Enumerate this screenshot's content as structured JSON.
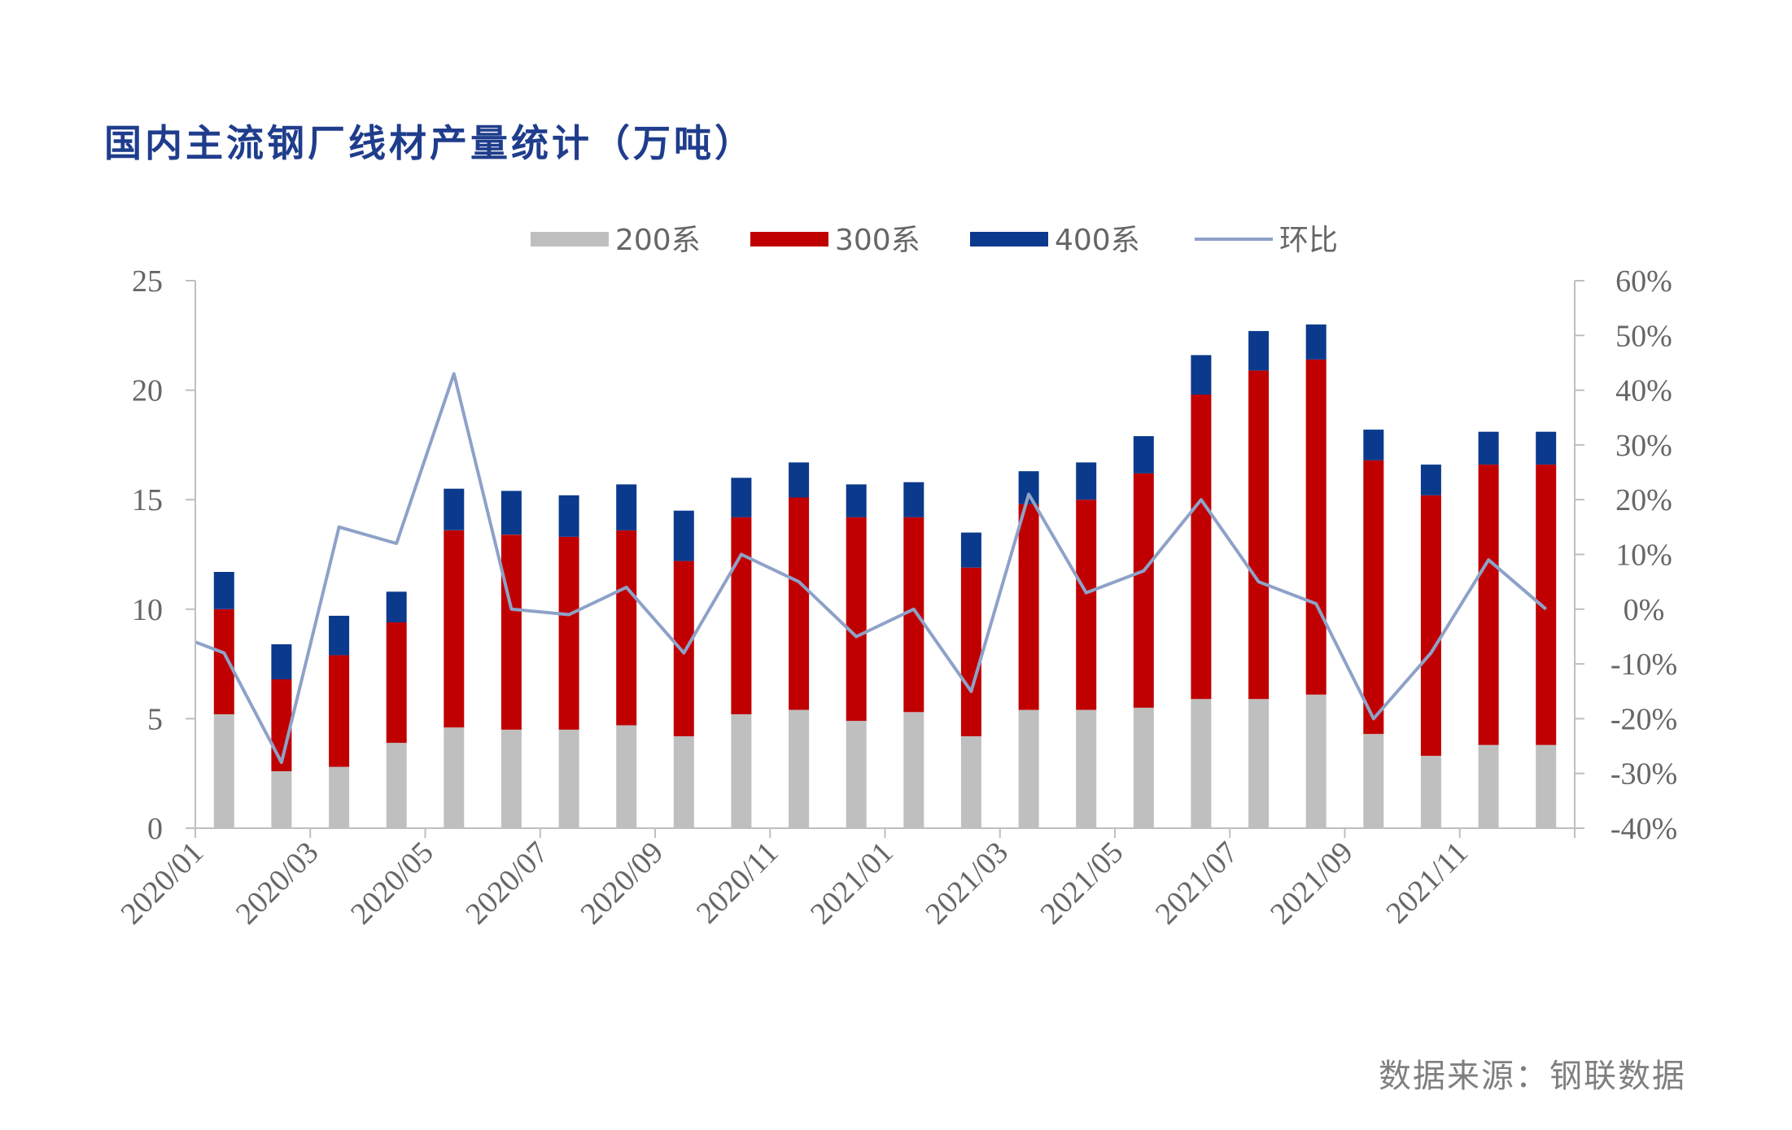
{
  "title": "国内主流钢厂线材产量统计（万吨）",
  "source": "数据来源：钢联数据",
  "chart_data": {
    "type": "bar",
    "stacked": true,
    "title": "国内主流钢厂线材产量统计（万吨）",
    "categories": [
      "2020/01",
      "2020/02",
      "2020/03",
      "2020/04",
      "2020/05",
      "2020/06",
      "2020/07",
      "2020/08",
      "2020/09",
      "2020/10",
      "2020/11",
      "2020/12",
      "2021/01",
      "2021/02",
      "2021/03",
      "2021/04",
      "2021/05",
      "2021/06",
      "2021/07",
      "2021/08",
      "2021/09",
      "2021/10",
      "2021/11",
      "2021/12"
    ],
    "tick_labels": [
      "2020/01",
      "2020/03",
      "2020/05",
      "2020/07",
      "2020/09",
      "2020/11",
      "2021/01",
      "2021/03",
      "2021/05",
      "2021/07",
      "2021/09",
      "2021/11"
    ],
    "series": [
      {
        "name": "200系",
        "kind": "bar",
        "axis": "left",
        "color": "#bfbfbf",
        "values": [
          5.2,
          2.6,
          2.8,
          3.9,
          4.6,
          4.5,
          4.5,
          4.7,
          4.2,
          5.2,
          5.4,
          4.9,
          5.3,
          4.2,
          5.4,
          5.4,
          5.5,
          5.9,
          5.9,
          6.1,
          4.3,
          3.3,
          3.8,
          3.8
        ]
      },
      {
        "name": "300系",
        "kind": "bar",
        "axis": "left",
        "color": "#c00000",
        "values": [
          4.8,
          4.2,
          5.1,
          5.5,
          9.0,
          8.9,
          8.8,
          8.9,
          8.0,
          9.0,
          9.7,
          9.3,
          8.9,
          7.7,
          9.4,
          9.6,
          10.7,
          13.9,
          15.0,
          15.3,
          12.5,
          11.9,
          12.8,
          12.8
        ]
      },
      {
        "name": "400系",
        "kind": "bar",
        "axis": "left",
        "color": "#0b3a8c",
        "values": [
          1.7,
          1.6,
          1.8,
          1.4,
          1.9,
          2.0,
          1.9,
          2.1,
          2.3,
          1.8,
          1.6,
          1.5,
          1.6,
          1.6,
          1.5,
          1.7,
          1.7,
          1.8,
          1.8,
          1.6,
          1.4,
          1.4,
          1.5,
          1.5
        ]
      },
      {
        "name": "环比",
        "kind": "line",
        "axis": "right",
        "color": "#8ea2c8",
        "values": [
          -8,
          -28,
          15,
          12,
          43,
          0,
          -1,
          4,
          -8,
          10,
          5,
          -5,
          0,
          -15,
          21,
          3,
          7,
          20,
          5,
          1,
          -20,
          -8,
          9,
          0
        ]
      }
    ],
    "line_start_value": -6,
    "left_axis": {
      "min": 0,
      "max": 25,
      "ticks": [
        0,
        5,
        10,
        15,
        20,
        25
      ]
    },
    "right_axis": {
      "min": -40,
      "max": 60,
      "ticks": [
        "-40%",
        "-30%",
        "-20%",
        "-10%",
        "0%",
        "10%",
        "20%",
        "30%",
        "40%",
        "50%",
        "60%"
      ]
    },
    "legend_position": "top-center",
    "grid": false
  }
}
